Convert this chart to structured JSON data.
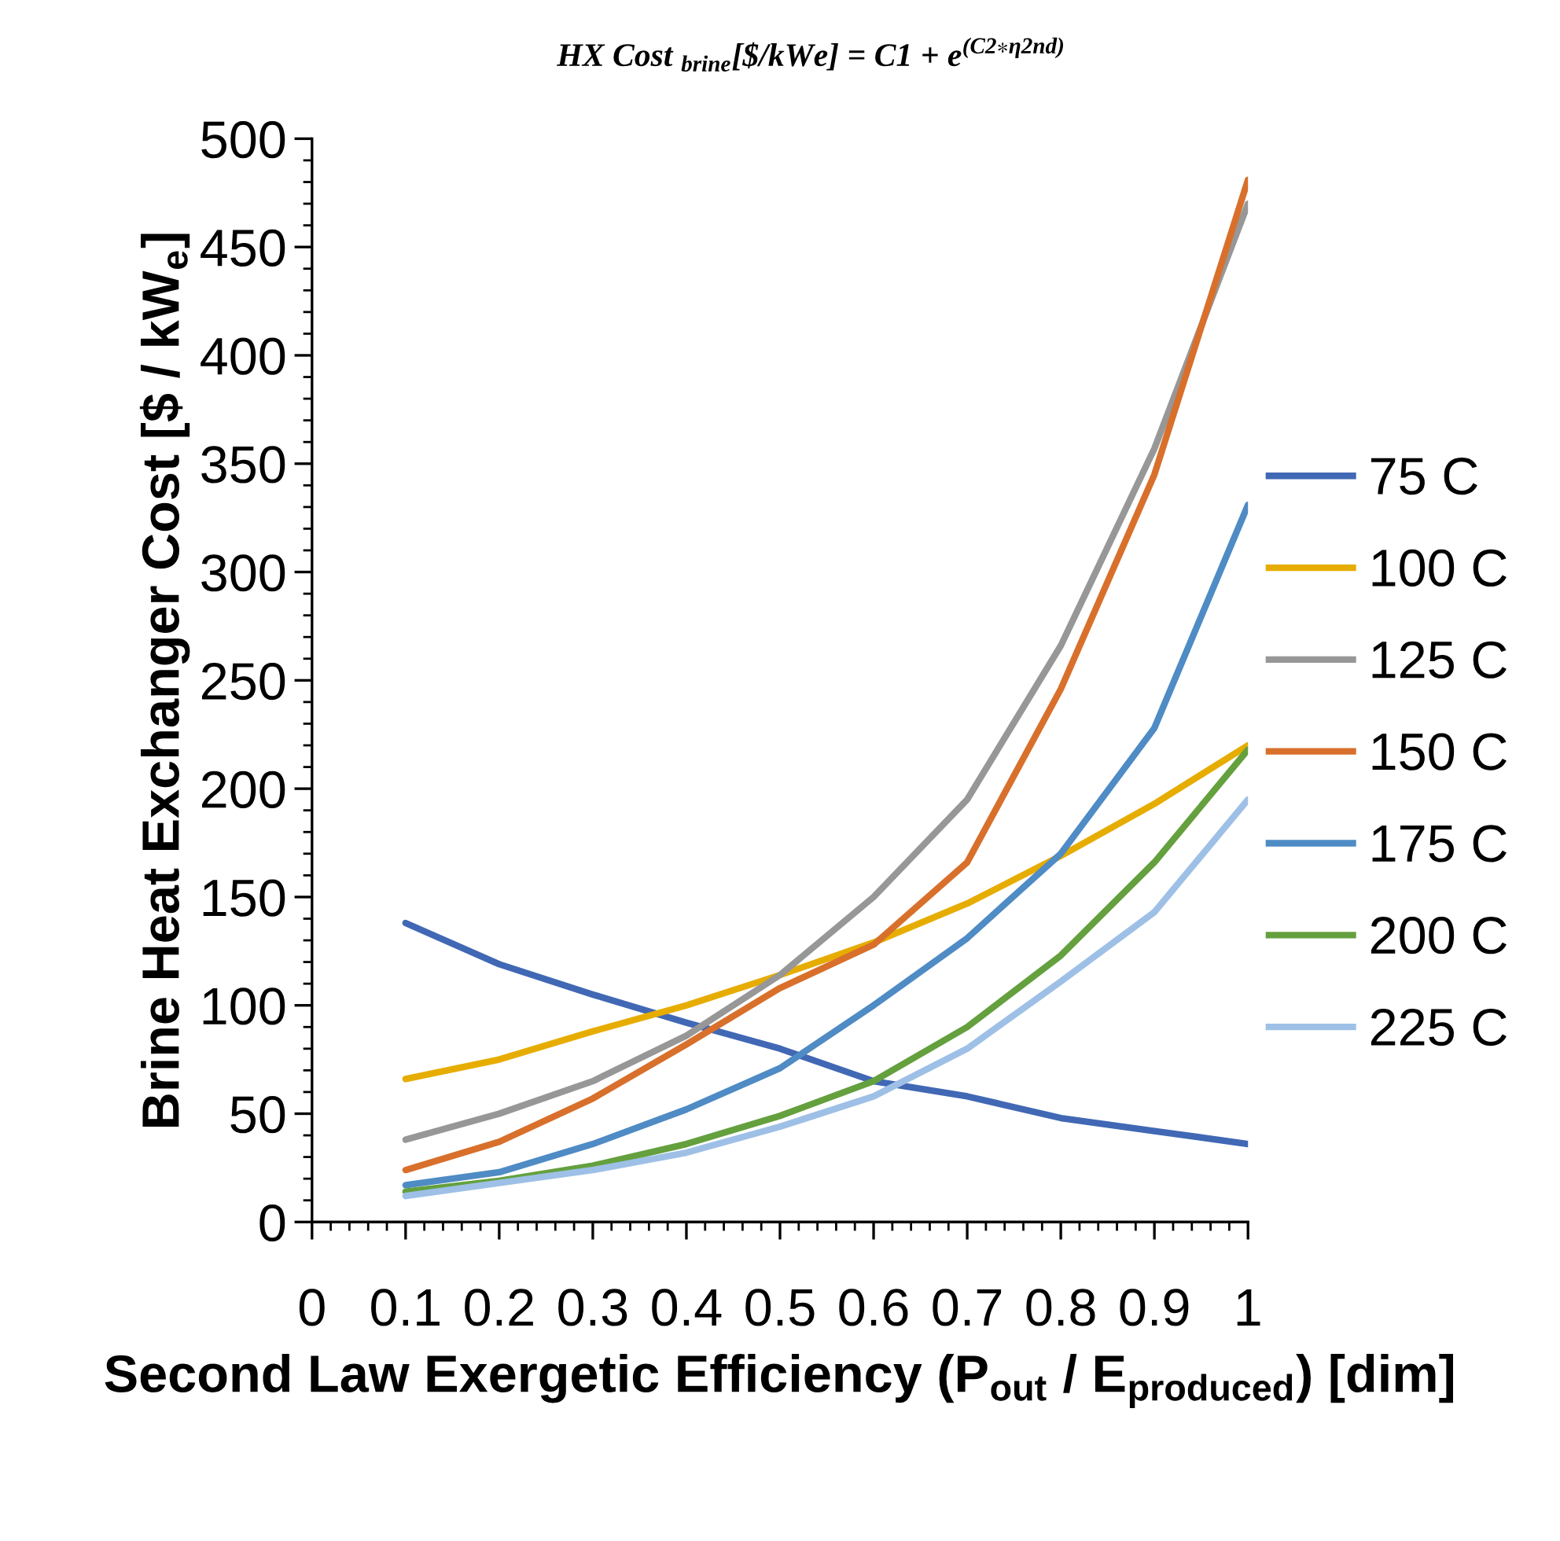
{
  "chart_data": {
    "type": "line",
    "title": "HX Cost $_{brine}$[$/kWe] = C1 + e$^{(C2∗η2nd)}$",
    "xlabel": "Second Law Exergetic Efficiency (P$_{out}$ / E$_{produced}$) [dim]",
    "ylabel": "Brine Heat Exchanger Cost [$ / kW$_{e}$]",
    "x": [
      0.1,
      0.2,
      0.3,
      0.4,
      0.5,
      0.6,
      0.7,
      0.8,
      0.9,
      1.0
    ],
    "series": [
      {
        "name": "75 C",
        "color": "#4168b4",
        "values": [
          138,
          119,
          105,
          92,
          80,
          65,
          58,
          48,
          42,
          36
        ]
      },
      {
        "name": "100 C",
        "color": "#e6ad00",
        "values": [
          66,
          75,
          88,
          100,
          114,
          129,
          147,
          169,
          193,
          220
        ]
      },
      {
        "name": "125 C",
        "color": "#979797",
        "values": [
          38,
          50,
          65,
          86,
          114,
          150,
          195,
          266,
          357,
          470
        ]
      },
      {
        "name": "150 C",
        "color": "#d8702c",
        "values": [
          24,
          37,
          57,
          82,
          108,
          128,
          166,
          246,
          345,
          481
        ]
      },
      {
        "name": "175 C",
        "color": "#4f8bc4",
        "values": [
          17,
          23,
          36,
          52,
          71,
          100,
          131,
          170,
          228,
          331
        ]
      },
      {
        "name": "200 C",
        "color": "#64a03e",
        "values": [
          14,
          19,
          26,
          36,
          49,
          65,
          90,
          123,
          166,
          218
        ]
      },
      {
        "name": "225 C",
        "color": "#9ec0e6",
        "values": [
          12,
          18,
          24,
          32,
          44,
          58,
          80,
          111,
          143,
          195
        ]
      }
    ],
    "xlim": [
      0,
      1
    ],
    "xticks": [
      0,
      0.1,
      0.2,
      0.3,
      0.4,
      0.5,
      0.6,
      0.7,
      0.8,
      0.9,
      1
    ],
    "ylim": [
      0,
      500
    ],
    "yticks": [
      0,
      50,
      100,
      150,
      200,
      250,
      300,
      350,
      400,
      450,
      500
    ],
    "grid": false,
    "legend": "right",
    "marker": "none",
    "line_style": "solid"
  }
}
